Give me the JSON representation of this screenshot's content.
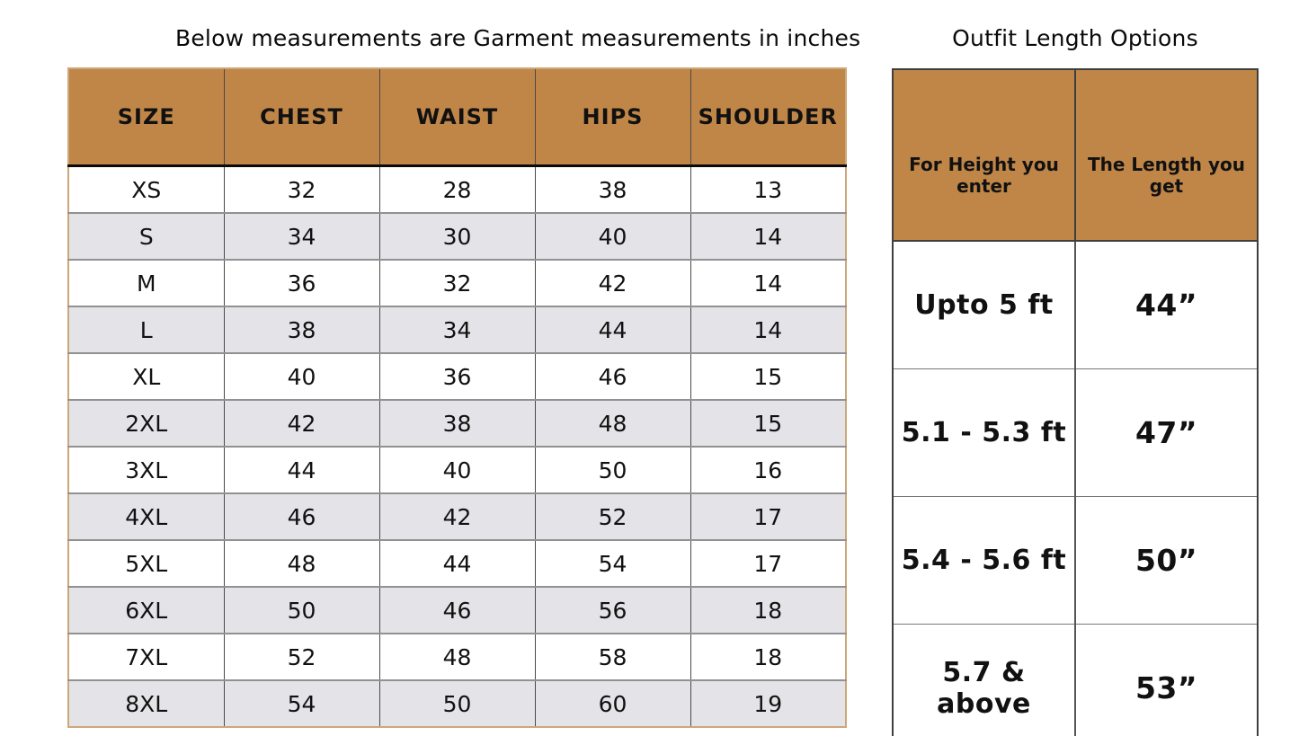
{
  "colors": {
    "header_bg": "#C08648",
    "tan_border": "#CDA778",
    "stripe": "#E4E4E8",
    "gray_line": "#919191",
    "dark_line": "#3F3F3F",
    "black_line": "#0A0A0A",
    "text": "#111111",
    "page_bg": "#FFFFFF"
  },
  "chart_data": [
    {
      "type": "table",
      "title": "Below measurements are Garment measurements in inches",
      "columns": [
        "SIZE",
        "CHEST",
        "WAIST",
        "HIPS",
        "SHOULDER"
      ],
      "rows": [
        [
          "XS",
          "32",
          "28",
          "38",
          "13"
        ],
        [
          "S",
          "34",
          "30",
          "40",
          "14"
        ],
        [
          "M",
          "36",
          "32",
          "42",
          "14"
        ],
        [
          "L",
          "38",
          "34",
          "44",
          "14"
        ],
        [
          "XL",
          "40",
          "36",
          "46",
          "15"
        ],
        [
          "2XL",
          "42",
          "38",
          "48",
          "15"
        ],
        [
          "3XL",
          "44",
          "40",
          "50",
          "16"
        ],
        [
          "4XL",
          "46",
          "42",
          "52",
          "17"
        ],
        [
          "5XL",
          "48",
          "44",
          "54",
          "17"
        ],
        [
          "6XL",
          "50",
          "46",
          "56",
          "18"
        ],
        [
          "7XL",
          "52",
          "48",
          "58",
          "18"
        ],
        [
          "8XL",
          "54",
          "50",
          "60",
          "19"
        ]
      ],
      "layout": {
        "striped": true,
        "stripe_start_row": 1
      }
    },
    {
      "type": "table",
      "title": "Outfit Length Options",
      "columns": [
        "For Height you enter",
        "The Length you get"
      ],
      "rows": [
        [
          "Upto 5 ft",
          "44”"
        ],
        [
          "5.1 - 5.3 ft",
          "47”"
        ],
        [
          "5.4 - 5.6 ft",
          "50”"
        ],
        [
          "5.7 & above",
          "53”"
        ]
      ],
      "layout": {
        "striped": false
      }
    }
  ]
}
